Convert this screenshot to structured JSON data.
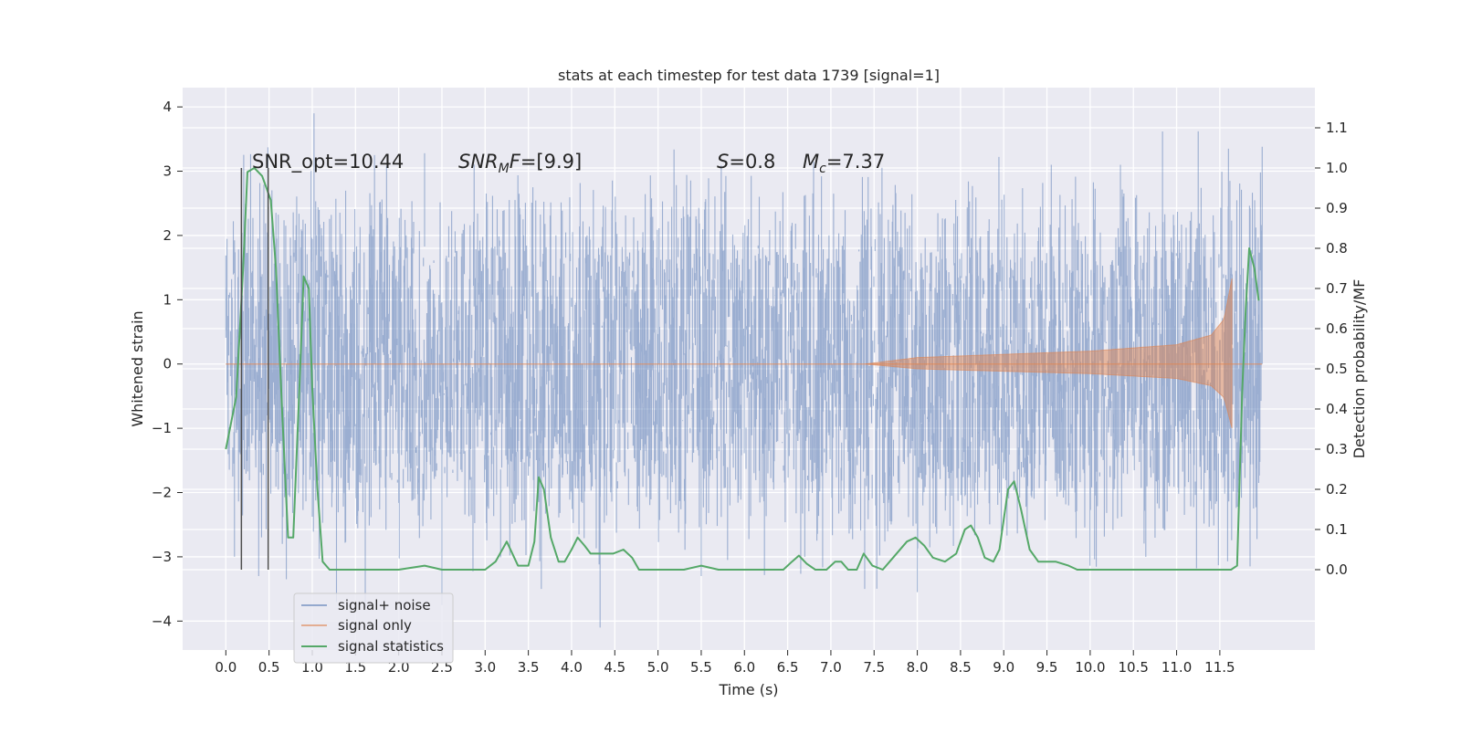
{
  "chart_data": {
    "type": "line",
    "title": "stats at each timestep for test data 1739 [signal=1]",
    "xlabel": "Time (s)",
    "ylabel_left": "Whitened strain",
    "ylabel_right": "Detection probability/MF",
    "xlim": [
      -0.5,
      12.6
    ],
    "ylim_left": [
      -4.45,
      4.3
    ],
    "ylim_right": [
      -0.2,
      1.2
    ],
    "x_ticks": [
      0.0,
      0.5,
      1.0,
      1.5,
      2.0,
      2.5,
      3.0,
      3.5,
      4.0,
      4.5,
      5.0,
      5.5,
      6.0,
      6.5,
      7.0,
      7.5,
      8.0,
      8.5,
      9.0,
      9.5,
      10.0,
      10.5,
      11.0,
      11.5
    ],
    "y_ticks_left": [
      -4,
      -3,
      -2,
      -1,
      0,
      1,
      2,
      3,
      4
    ],
    "y_ticks_right": [
      0.0,
      0.1,
      0.2,
      0.3,
      0.4,
      0.5,
      0.6,
      0.7,
      0.8,
      0.9,
      1.0,
      1.1
    ],
    "grid": true,
    "legend_position": "lower-left",
    "annotations": {
      "snr_opt": "SNR_opt=10.44",
      "snr_mf_prefix": "SNR",
      "snr_mf_sub": "M",
      "snr_mf_mid": "F",
      "snr_mf_value": "=[9.9]",
      "s_symbol": "S",
      "s_value": "=0.8",
      "mc_symbol": "M",
      "mc_sub": "c",
      "mc_value": "=7.37"
    },
    "marker_lines_x": [
      0.18,
      0.49
    ],
    "series": [
      {
        "name": "signal+ noise",
        "color": "#4c72b0",
        "axis": "left",
        "x_range": [
          0.0,
          11.99
        ],
        "typical_envelope": [
          -1.85,
          1.85
        ],
        "peak_range": [
          -4.1,
          3.9
        ]
      },
      {
        "name": "signal only",
        "color": "#dd8452",
        "axis": "left",
        "chirp": {
          "start_x": 7.4,
          "peak_x": 11.65,
          "end_x": 11.99,
          "peak_amplitude": 1.4,
          "amplitude_points": [
            [
              7.4,
              0.0
            ],
            [
              8.0,
              0.1
            ],
            [
              9.0,
              0.15
            ],
            [
              10.0,
              0.2
            ],
            [
              11.0,
              0.3
            ],
            [
              11.4,
              0.45
            ],
            [
              11.55,
              0.7
            ],
            [
              11.65,
              1.4
            ]
          ]
        }
      },
      {
        "name": "signal statistics",
        "color": "#55a868",
        "axis": "right",
        "points": [
          [
            0.0,
            0.3
          ],
          [
            0.12,
            0.43
          ],
          [
            0.2,
            0.75
          ],
          [
            0.25,
            0.99
          ],
          [
            0.33,
            1.0
          ],
          [
            0.42,
            0.98
          ],
          [
            0.52,
            0.92
          ],
          [
            0.58,
            0.75
          ],
          [
            0.65,
            0.4
          ],
          [
            0.72,
            0.08
          ],
          [
            0.78,
            0.08
          ],
          [
            0.86,
            0.5
          ],
          [
            0.9,
            0.73
          ],
          [
            0.96,
            0.7
          ],
          [
            1.0,
            0.45
          ],
          [
            1.06,
            0.2
          ],
          [
            1.12,
            0.02
          ],
          [
            1.2,
            0.0
          ],
          [
            1.5,
            0.0
          ],
          [
            2.0,
            0.0
          ],
          [
            2.3,
            0.01
          ],
          [
            2.5,
            0.0
          ],
          [
            3.0,
            0.0
          ],
          [
            3.12,
            0.02
          ],
          [
            3.25,
            0.07
          ],
          [
            3.38,
            0.01
          ],
          [
            3.5,
            0.01
          ],
          [
            3.57,
            0.07
          ],
          [
            3.62,
            0.23
          ],
          [
            3.68,
            0.2
          ],
          [
            3.76,
            0.08
          ],
          [
            3.85,
            0.02
          ],
          [
            3.92,
            0.02
          ],
          [
            4.0,
            0.05
          ],
          [
            4.07,
            0.08
          ],
          [
            4.15,
            0.06
          ],
          [
            4.22,
            0.04
          ],
          [
            4.35,
            0.04
          ],
          [
            4.48,
            0.04
          ],
          [
            4.6,
            0.05
          ],
          [
            4.7,
            0.03
          ],
          [
            4.78,
            0.0
          ],
          [
            5.0,
            0.0
          ],
          [
            5.3,
            0.0
          ],
          [
            5.5,
            0.01
          ],
          [
            5.7,
            0.0
          ],
          [
            6.0,
            0.0
          ],
          [
            6.45,
            0.0
          ],
          [
            6.55,
            0.02
          ],
          [
            6.63,
            0.035
          ],
          [
            6.72,
            0.015
          ],
          [
            6.82,
            0.0
          ],
          [
            6.95,
            0.0
          ],
          [
            7.05,
            0.02
          ],
          [
            7.12,
            0.02
          ],
          [
            7.2,
            0.0
          ],
          [
            7.3,
            0.0
          ],
          [
            7.38,
            0.04
          ],
          [
            7.48,
            0.01
          ],
          [
            7.6,
            0.0
          ],
          [
            7.72,
            0.03
          ],
          [
            7.88,
            0.07
          ],
          [
            7.98,
            0.08
          ],
          [
            8.08,
            0.06
          ],
          [
            8.18,
            0.03
          ],
          [
            8.32,
            0.02
          ],
          [
            8.45,
            0.04
          ],
          [
            8.55,
            0.1
          ],
          [
            8.62,
            0.11
          ],
          [
            8.7,
            0.08
          ],
          [
            8.78,
            0.03
          ],
          [
            8.88,
            0.02
          ],
          [
            8.95,
            0.05
          ],
          [
            9.05,
            0.2
          ],
          [
            9.12,
            0.22
          ],
          [
            9.2,
            0.15
          ],
          [
            9.3,
            0.05
          ],
          [
            9.4,
            0.02
          ],
          [
            9.6,
            0.02
          ],
          [
            9.75,
            0.01
          ],
          [
            9.85,
            0.0
          ],
          [
            10.0,
            0.0
          ],
          [
            10.5,
            0.0
          ],
          [
            11.0,
            0.0
          ],
          [
            11.4,
            0.0
          ],
          [
            11.63,
            0.0
          ],
          [
            11.7,
            0.01
          ],
          [
            11.76,
            0.45
          ],
          [
            11.8,
            0.65
          ],
          [
            11.84,
            0.8
          ],
          [
            11.9,
            0.75
          ],
          [
            11.95,
            0.67
          ]
        ]
      }
    ]
  }
}
